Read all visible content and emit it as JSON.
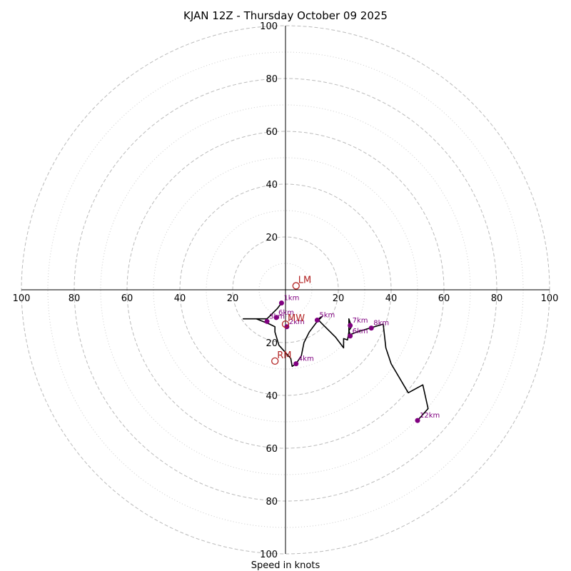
{
  "chart_data": {
    "type": "hodograph",
    "title": "KJAN 12Z - Thursday October 09 2025",
    "xlabel": "Speed in knots",
    "max_speed": 100,
    "major_rings": [
      20,
      40,
      60,
      80,
      100
    ],
    "minor_rings": [
      10,
      30,
      50,
      70,
      90
    ],
    "axis_tick_labels": [
      "20",
      "40",
      "60",
      "80",
      "100"
    ],
    "colors": {
      "trace": "#000000",
      "height_marker": "#800080",
      "motion_marker": "#b22222",
      "major_grid": "#bbbbbb",
      "minor_grid": "#cccccc"
    },
    "trace_uv": [
      [
        -1.5,
        -5
      ],
      [
        -3,
        -7
      ],
      [
        -5,
        -9
      ],
      [
        -6,
        -10
      ],
      [
        -7,
        -11
      ],
      [
        -16,
        -11
      ],
      [
        -11,
        -11
      ],
      [
        -6,
        -13
      ],
      [
        -4,
        -14
      ],
      [
        -4,
        -16
      ],
      [
        -2.5,
        -21
      ],
      [
        2,
        -26
      ],
      [
        2.5,
        -29
      ],
      [
        4,
        -28
      ],
      [
        6,
        -25
      ],
      [
        7,
        -20
      ],
      [
        9,
        -16
      ],
      [
        12,
        -12
      ],
      [
        14,
        -10
      ],
      [
        12.5,
        -11
      ],
      [
        13,
        -12
      ],
      [
        19,
        -18
      ],
      [
        22,
        -22
      ],
      [
        22,
        -18.5
      ],
      [
        23.5,
        -19
      ],
      [
        24,
        -16
      ],
      [
        24,
        -11
      ],
      [
        25,
        -14
      ],
      [
        24,
        -15.5
      ],
      [
        24.5,
        -17
      ],
      [
        27,
        -16
      ],
      [
        37,
        -13
      ],
      [
        38,
        -22
      ],
      [
        40,
        -28
      ],
      [
        46.5,
        -39
      ],
      [
        52,
        -36
      ],
      [
        54,
        -45
      ],
      [
        50,
        -49.5
      ]
    ],
    "height_markers": [
      {
        "label": "1km",
        "u": -1.5,
        "v": -5
      },
      {
        "label": "2km",
        "u": 0.5,
        "v": -14
      },
      {
        "label": "3km",
        "u": -7,
        "v": -12
      },
      {
        "label": "4km",
        "u": 4,
        "v": -28
      },
      {
        "label": "5km",
        "u": 12,
        "v": -11.5
      },
      {
        "label": "6km",
        "u": -3.5,
        "v": -10.5
      },
      {
        "label": "6km",
        "u": 24.5,
        "v": -17.5
      },
      {
        "label": "7km",
        "u": 24.5,
        "v": -13.5
      },
      {
        "label": "8km",
        "u": 32.5,
        "v": -14.5
      },
      {
        "label": "12km",
        "u": 50,
        "v": -49.5
      }
    ],
    "motion_markers": [
      {
        "label": "LM",
        "u": 4,
        "v": 1.5
      },
      {
        "label": "RM",
        "u": -4,
        "v": -27
      },
      {
        "label": "MW",
        "u": 0,
        "v": -13
      }
    ]
  }
}
